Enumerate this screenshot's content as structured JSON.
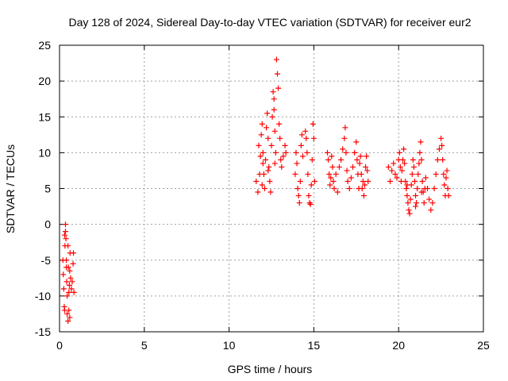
{
  "chart_data": {
    "type": "scatter",
    "title": "Day 128 of 2024, Sidereal Day-to-day VTEC variation (SDTVAR) for receiver eur2",
    "xlabel": "GPS time / hours",
    "ylabel": "SDTVAR / TECUs",
    "xlim": [
      0,
      25
    ],
    "ylim": [
      -15,
      25
    ],
    "x_ticks": [
      0,
      5,
      10,
      15,
      20,
      25
    ],
    "y_ticks": [
      -15,
      -10,
      -5,
      0,
      5,
      10,
      15,
      20,
      25
    ],
    "x_tick_labels": [
      "0",
      "5",
      "10",
      "15",
      "20",
      "25"
    ],
    "y_tick_labels": [
      "-15",
      "-10",
      "-5",
      "0",
      "5",
      "10",
      "15",
      "20",
      "25"
    ],
    "grid": true,
    "marker": "+",
    "color": "#ff0000",
    "series": [
      {
        "name": "SDTVAR",
        "points": [
          [
            0.2,
            -5.0
          ],
          [
            0.22,
            -7.0
          ],
          [
            0.25,
            -9.0
          ],
          [
            0.28,
            -11.5
          ],
          [
            0.3,
            -12.0
          ],
          [
            0.3,
            -1.5
          ],
          [
            0.32,
            -3.0
          ],
          [
            0.35,
            0.0
          ],
          [
            0.38,
            -2.0
          ],
          [
            0.4,
            -5.0
          ],
          [
            0.42,
            -8.0
          ],
          [
            0.45,
            -10.0
          ],
          [
            0.45,
            -12.5
          ],
          [
            0.5,
            -13.5
          ],
          [
            0.5,
            -3.0
          ],
          [
            0.52,
            -6.0
          ],
          [
            0.55,
            -9.5
          ],
          [
            0.58,
            -8.5
          ],
          [
            0.6,
            -6.5
          ],
          [
            0.62,
            -4.0
          ],
          [
            0.65,
            -7.5
          ],
          [
            0.7,
            -9.0
          ],
          [
            0.75,
            -8.0
          ],
          [
            0.8,
            -5.5
          ],
          [
            0.82,
            -4.0
          ],
          [
            0.85,
            -9.5
          ],
          [
            0.35,
            -1.0
          ],
          [
            0.4,
            -6.0
          ],
          [
            0.55,
            -12.0
          ],
          [
            0.6,
            -13.0
          ],
          [
            11.6,
            6.0
          ],
          [
            11.7,
            4.5
          ],
          [
            11.75,
            11.0
          ],
          [
            11.8,
            7.0
          ],
          [
            11.85,
            9.5
          ],
          [
            11.9,
            12.5
          ],
          [
            11.95,
            14.0
          ],
          [
            12.0,
            10.0
          ],
          [
            12.05,
            7.0
          ],
          [
            12.1,
            5.0
          ],
          [
            12.15,
            9.0
          ],
          [
            12.2,
            13.5
          ],
          [
            12.25,
            15.5
          ],
          [
            12.3,
            12.0
          ],
          [
            12.35,
            8.0
          ],
          [
            12.4,
            6.0
          ],
          [
            12.45,
            4.5
          ],
          [
            12.5,
            11.0
          ],
          [
            12.55,
            15.0
          ],
          [
            12.6,
            18.5
          ],
          [
            12.65,
            17.5
          ],
          [
            12.7,
            13.0
          ],
          [
            12.75,
            10.0
          ],
          [
            12.8,
            23.0
          ],
          [
            12.85,
            21.0
          ],
          [
            12.9,
            19.0
          ],
          [
            12.95,
            14.0
          ],
          [
            13.0,
            12.0
          ],
          [
            13.05,
            9.0
          ],
          [
            13.1,
            8.0
          ],
          [
            13.2,
            9.5
          ],
          [
            13.3,
            11.0
          ],
          [
            13.35,
            10.0
          ],
          [
            12.65,
            16.0
          ],
          [
            12.7,
            8.5
          ],
          [
            12.3,
            7.5
          ],
          [
            12.0,
            8.5
          ],
          [
            11.95,
            5.5
          ],
          [
            13.9,
            7.0
          ],
          [
            13.95,
            10.0
          ],
          [
            14.0,
            8.5
          ],
          [
            14.05,
            5.0
          ],
          [
            14.1,
            4.0
          ],
          [
            14.15,
            3.0
          ],
          [
            14.2,
            6.0
          ],
          [
            14.25,
            11.0
          ],
          [
            14.3,
            12.5
          ],
          [
            14.35,
            9.5
          ],
          [
            14.5,
            13.0
          ],
          [
            14.55,
            12.0
          ],
          [
            14.6,
            10.0
          ],
          [
            14.65,
            7.0
          ],
          [
            14.7,
            4.0
          ],
          [
            14.75,
            3.0
          ],
          [
            14.8,
            2.8
          ],
          [
            14.85,
            5.5
          ],
          [
            14.9,
            9.0
          ],
          [
            14.95,
            14.0
          ],
          [
            15.0,
            12.0
          ],
          [
            15.05,
            6.0
          ],
          [
            15.8,
            10.0
          ],
          [
            15.85,
            9.0
          ],
          [
            15.9,
            7.0
          ],
          [
            15.95,
            5.5
          ],
          [
            16.0,
            6.5
          ],
          [
            16.05,
            9.5
          ],
          [
            16.1,
            8.0
          ],
          [
            16.15,
            6.0
          ],
          [
            16.2,
            5.0
          ],
          [
            16.3,
            7.0
          ],
          [
            16.4,
            4.5
          ],
          [
            16.5,
            8.0
          ],
          [
            16.6,
            9.0
          ],
          [
            16.7,
            10.5
          ],
          [
            16.8,
            12.0
          ],
          [
            16.85,
            13.5
          ],
          [
            16.9,
            10.0
          ],
          [
            16.95,
            7.5
          ],
          [
            17.0,
            6.0
          ],
          [
            17.1,
            5.0
          ],
          [
            17.2,
            6.5
          ],
          [
            17.3,
            8.0
          ],
          [
            17.4,
            10.0
          ],
          [
            17.5,
            11.5
          ],
          [
            17.55,
            9.0
          ],
          [
            17.6,
            7.0
          ],
          [
            17.65,
            5.0
          ],
          [
            17.7,
            8.5
          ],
          [
            17.75,
            9.5
          ],
          [
            17.8,
            7.0
          ],
          [
            17.85,
            5.0
          ],
          [
            17.9,
            6.0
          ],
          [
            17.95,
            4.0
          ],
          [
            18.0,
            5.5
          ],
          [
            18.05,
            8.0
          ],
          [
            18.1,
            9.5
          ],
          [
            18.15,
            7.5
          ],
          [
            18.2,
            6.0
          ],
          [
            19.4,
            8.0
          ],
          [
            19.5,
            6.0
          ],
          [
            19.6,
            7.5
          ],
          [
            19.7,
            8.5
          ],
          [
            19.8,
            7.0
          ],
          [
            19.9,
            6.5
          ],
          [
            20.0,
            9.0
          ],
          [
            20.05,
            10.0
          ],
          [
            20.1,
            8.0
          ],
          [
            20.15,
            6.0
          ],
          [
            20.2,
            7.5
          ],
          [
            20.25,
            9.0
          ],
          [
            20.3,
            10.5
          ],
          [
            20.35,
            8.5
          ],
          [
            20.4,
            6.0
          ],
          [
            20.45,
            5.0
          ],
          [
            20.5,
            4.0
          ],
          [
            20.55,
            3.0
          ],
          [
            20.6,
            2.0
          ],
          [
            20.65,
            1.5
          ],
          [
            20.7,
            3.5
          ],
          [
            20.75,
            5.5
          ],
          [
            20.8,
            7.0
          ],
          [
            20.85,
            9.0
          ],
          [
            20.9,
            8.0
          ],
          [
            20.95,
            6.0
          ],
          [
            21.0,
            4.0
          ],
          [
            21.05,
            3.0
          ],
          [
            21.1,
            5.0
          ],
          [
            21.15,
            7.0
          ],
          [
            21.2,
            8.5
          ],
          [
            21.25,
            10.0
          ],
          [
            21.3,
            11.5
          ],
          [
            21.35,
            9.0
          ],
          [
            21.4,
            6.0
          ],
          [
            21.45,
            4.5
          ],
          [
            21.5,
            3.0
          ],
          [
            21.55,
            5.0
          ],
          [
            21.6,
            6.5
          ],
          [
            21.7,
            5.0
          ],
          [
            21.8,
            3.5
          ],
          [
            21.9,
            2.0
          ],
          [
            22.0,
            3.0
          ],
          [
            22.1,
            5.0
          ],
          [
            22.2,
            7.0
          ],
          [
            22.3,
            9.0
          ],
          [
            22.4,
            10.5
          ],
          [
            22.5,
            12.0
          ],
          [
            22.55,
            11.0
          ],
          [
            22.6,
            9.0
          ],
          [
            22.65,
            7.0
          ],
          [
            22.7,
            5.5
          ],
          [
            22.75,
            4.0
          ],
          [
            22.8,
            6.5
          ],
          [
            22.85,
            7.5
          ],
          [
            22.9,
            5.0
          ],
          [
            22.95,
            4.0
          ],
          [
            21.35,
            4.5
          ],
          [
            21.0,
            2.5
          ],
          [
            20.5,
            5.5
          ]
        ]
      }
    ]
  }
}
